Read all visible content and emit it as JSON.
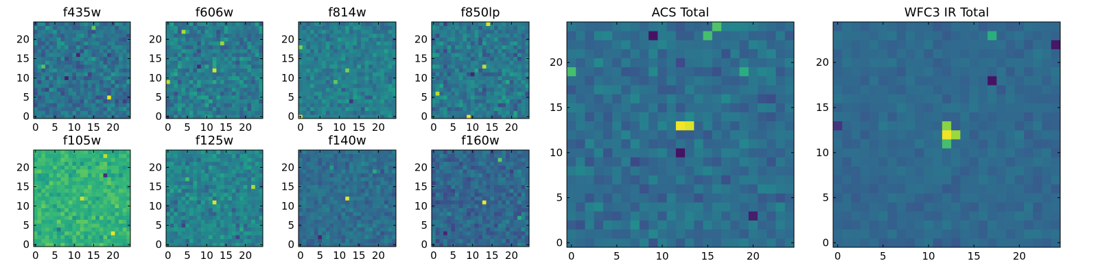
{
  "figure": {
    "background": "#ffffff",
    "colormap": "viridis"
  },
  "chart_data": [
    {
      "type": "heatmap",
      "title": "f435w",
      "grid": false,
      "xticks": [
        0,
        5,
        10,
        15,
        20
      ],
      "yticks": [
        0,
        5,
        10,
        15,
        20
      ],
      "xlim": [
        -0.5,
        24.5
      ],
      "ylim": [
        -0.5,
        24.5
      ],
      "size": 25,
      "seed": 11,
      "background_level": 0.38,
      "noise": 0.13,
      "peaks": [
        {
          "x": 19,
          "y": 5,
          "value": 0.97
        },
        {
          "x": 15,
          "y": 23,
          "value": 0.75
        },
        {
          "x": 2,
          "y": 13,
          "value": 0.72
        },
        {
          "x": 11,
          "y": 16,
          "value": 0.1
        },
        {
          "x": 8,
          "y": 10,
          "value": 0.08
        }
      ]
    },
    {
      "type": "heatmap",
      "title": "f606w",
      "grid": false,
      "xticks": [
        0,
        5,
        10,
        15,
        20
      ],
      "yticks": [
        0,
        5,
        10,
        15,
        20
      ],
      "xlim": [
        -0.5,
        24.5
      ],
      "ylim": [
        -0.5,
        24.5
      ],
      "size": 25,
      "seed": 23,
      "background_level": 0.42,
      "noise": 0.14,
      "peaks": [
        {
          "x": 12,
          "y": 12,
          "value": 0.95
        },
        {
          "x": 4,
          "y": 22,
          "value": 0.88
        },
        {
          "x": 14,
          "y": 19,
          "value": 0.85
        },
        {
          "x": 0,
          "y": 9,
          "value": 0.9
        },
        {
          "x": 8,
          "y": 13,
          "value": 0.12
        }
      ]
    },
    {
      "type": "heatmap",
      "title": "f814w",
      "grid": false,
      "xticks": [
        0,
        5,
        10,
        15,
        20
      ],
      "yticks": [
        0,
        5,
        10,
        15,
        20
      ],
      "xlim": [
        -0.5,
        24.5
      ],
      "ylim": [
        -0.5,
        24.5
      ],
      "size": 25,
      "seed": 37,
      "background_level": 0.43,
      "noise": 0.11,
      "peaks": [
        {
          "x": 12,
          "y": 12,
          "value": 0.8
        },
        {
          "x": 0,
          "y": 0,
          "value": 0.98
        },
        {
          "x": 0,
          "y": 18,
          "value": 0.8
        },
        {
          "x": 9,
          "y": 9,
          "value": 0.75
        },
        {
          "x": 13,
          "y": 4,
          "value": 0.15
        }
      ]
    },
    {
      "type": "heatmap",
      "title": "f850lp",
      "grid": false,
      "xticks": [
        0,
        5,
        10,
        15,
        20
      ],
      "yticks": [
        0,
        5,
        10,
        15,
        20
      ],
      "xlim": [
        -0.5,
        24.5
      ],
      "ylim": [
        -0.5,
        24.5
      ],
      "size": 25,
      "seed": 41,
      "background_level": 0.4,
      "noise": 0.14,
      "peaks": [
        {
          "x": 9,
          "y": 0,
          "value": 0.98
        },
        {
          "x": 14,
          "y": 24,
          "value": 0.95
        },
        {
          "x": 13,
          "y": 13,
          "value": 0.9
        },
        {
          "x": 1,
          "y": 6,
          "value": 0.9
        },
        {
          "x": 10,
          "y": 11,
          "value": 0.1
        }
      ]
    },
    {
      "type": "heatmap",
      "title": "f105w",
      "grid": false,
      "xticks": [
        0,
        5,
        10,
        15,
        20
      ],
      "yticks": [
        0,
        5,
        10,
        15,
        20
      ],
      "xlim": [
        -0.5,
        24.5
      ],
      "ylim": [
        -0.5,
        24.5
      ],
      "size": 25,
      "seed": 53,
      "background_level": 0.65,
      "noise": 0.1,
      "peaks": [
        {
          "x": 12,
          "y": 12,
          "value": 0.93
        },
        {
          "x": 20,
          "y": 3,
          "value": 0.97
        },
        {
          "x": 18,
          "y": 23,
          "value": 0.9
        },
        {
          "x": 18,
          "y": 18,
          "value": 0.12
        },
        {
          "x": 6,
          "y": 4,
          "value": 0.38
        }
      ]
    },
    {
      "type": "heatmap",
      "title": "f125w",
      "grid": false,
      "xticks": [
        0,
        5,
        10,
        15,
        20
      ],
      "yticks": [
        0,
        5,
        10,
        15,
        20
      ],
      "xlim": [
        -0.5,
        24.5
      ],
      "ylim": [
        -0.5,
        24.5
      ],
      "size": 25,
      "seed": 67,
      "background_level": 0.45,
      "noise": 0.12,
      "peaks": [
        {
          "x": 12,
          "y": 11,
          "value": 0.95
        },
        {
          "x": 22,
          "y": 15,
          "value": 0.88
        },
        {
          "x": 18,
          "y": 2,
          "value": 0.2
        },
        {
          "x": 4,
          "y": 5,
          "value": 0.2
        },
        {
          "x": 5,
          "y": 17,
          "value": 0.7
        }
      ]
    },
    {
      "type": "heatmap",
      "title": "f140w",
      "grid": false,
      "xticks": [
        0,
        5,
        10,
        15,
        20
      ],
      "yticks": [
        0,
        5,
        10,
        15,
        20
      ],
      "xlim": [
        -0.5,
        24.5
      ],
      "ylim": [
        -0.5,
        24.5
      ],
      "size": 25,
      "seed": 79,
      "background_level": 0.36,
      "noise": 0.09,
      "peaks": [
        {
          "x": 12,
          "y": 12,
          "value": 0.96
        },
        {
          "x": 5,
          "y": 2,
          "value": 0.1
        },
        {
          "x": 19,
          "y": 19,
          "value": 0.6
        },
        {
          "x": 8,
          "y": 20,
          "value": 0.55
        }
      ]
    },
    {
      "type": "heatmap",
      "title": "f160w",
      "grid": false,
      "xticks": [
        0,
        5,
        10,
        15,
        20
      ],
      "yticks": [
        0,
        5,
        10,
        15,
        20
      ],
      "xlim": [
        -0.5,
        24.5
      ],
      "ylim": [
        -0.5,
        24.5
      ],
      "size": 25,
      "seed": 83,
      "background_level": 0.33,
      "noise": 0.11,
      "peaks": [
        {
          "x": 13,
          "y": 11,
          "value": 0.98
        },
        {
          "x": 17,
          "y": 22,
          "value": 0.75
        },
        {
          "x": 3,
          "y": 3,
          "value": 0.1
        },
        {
          "x": 22,
          "y": 7,
          "value": 0.62
        }
      ]
    },
    {
      "type": "heatmap",
      "title": "ACS Total",
      "grid": false,
      "xticks": [
        0,
        5,
        10,
        15,
        20
      ],
      "yticks": [
        0,
        5,
        10,
        15,
        20
      ],
      "xlim": [
        -0.5,
        24.5
      ],
      "ylim": [
        -0.5,
        24.5
      ],
      "size": 25,
      "seed": 97,
      "background_level": 0.36,
      "noise": 0.09,
      "peaks": [
        {
          "x": 12,
          "y": 13,
          "value": 0.98
        },
        {
          "x": 13,
          "y": 13,
          "value": 0.95
        },
        {
          "x": 15,
          "y": 23,
          "value": 0.7
        },
        {
          "x": 16,
          "y": 24,
          "value": 0.72
        },
        {
          "x": 9,
          "y": 23,
          "value": 0.05
        },
        {
          "x": 12,
          "y": 10,
          "value": 0.05
        },
        {
          "x": 0,
          "y": 19,
          "value": 0.7
        },
        {
          "x": 19,
          "y": 19,
          "value": 0.62
        },
        {
          "x": 20,
          "y": 3,
          "value": 0.08
        }
      ]
    },
    {
      "type": "heatmap",
      "title": "WFC3 IR Total",
      "grid": false,
      "xticks": [
        0,
        5,
        10,
        15,
        20
      ],
      "yticks": [
        0,
        5,
        10,
        15,
        20
      ],
      "xlim": [
        -0.5,
        24.5
      ],
      "ylim": [
        -0.5,
        24.5
      ],
      "size": 25,
      "seed": 101,
      "background_level": 0.34,
      "noise": 0.05,
      "peaks": [
        {
          "x": 12,
          "y": 12,
          "value": 0.98
        },
        {
          "x": 13,
          "y": 12,
          "value": 0.85
        },
        {
          "x": 12,
          "y": 13,
          "value": 0.82
        },
        {
          "x": 12,
          "y": 11,
          "value": 0.7
        },
        {
          "x": 17,
          "y": 23,
          "value": 0.62
        },
        {
          "x": 17,
          "y": 18,
          "value": 0.05
        },
        {
          "x": 24,
          "y": 22,
          "value": 0.06
        },
        {
          "x": 0,
          "y": 13,
          "value": 0.15
        }
      ]
    }
  ]
}
